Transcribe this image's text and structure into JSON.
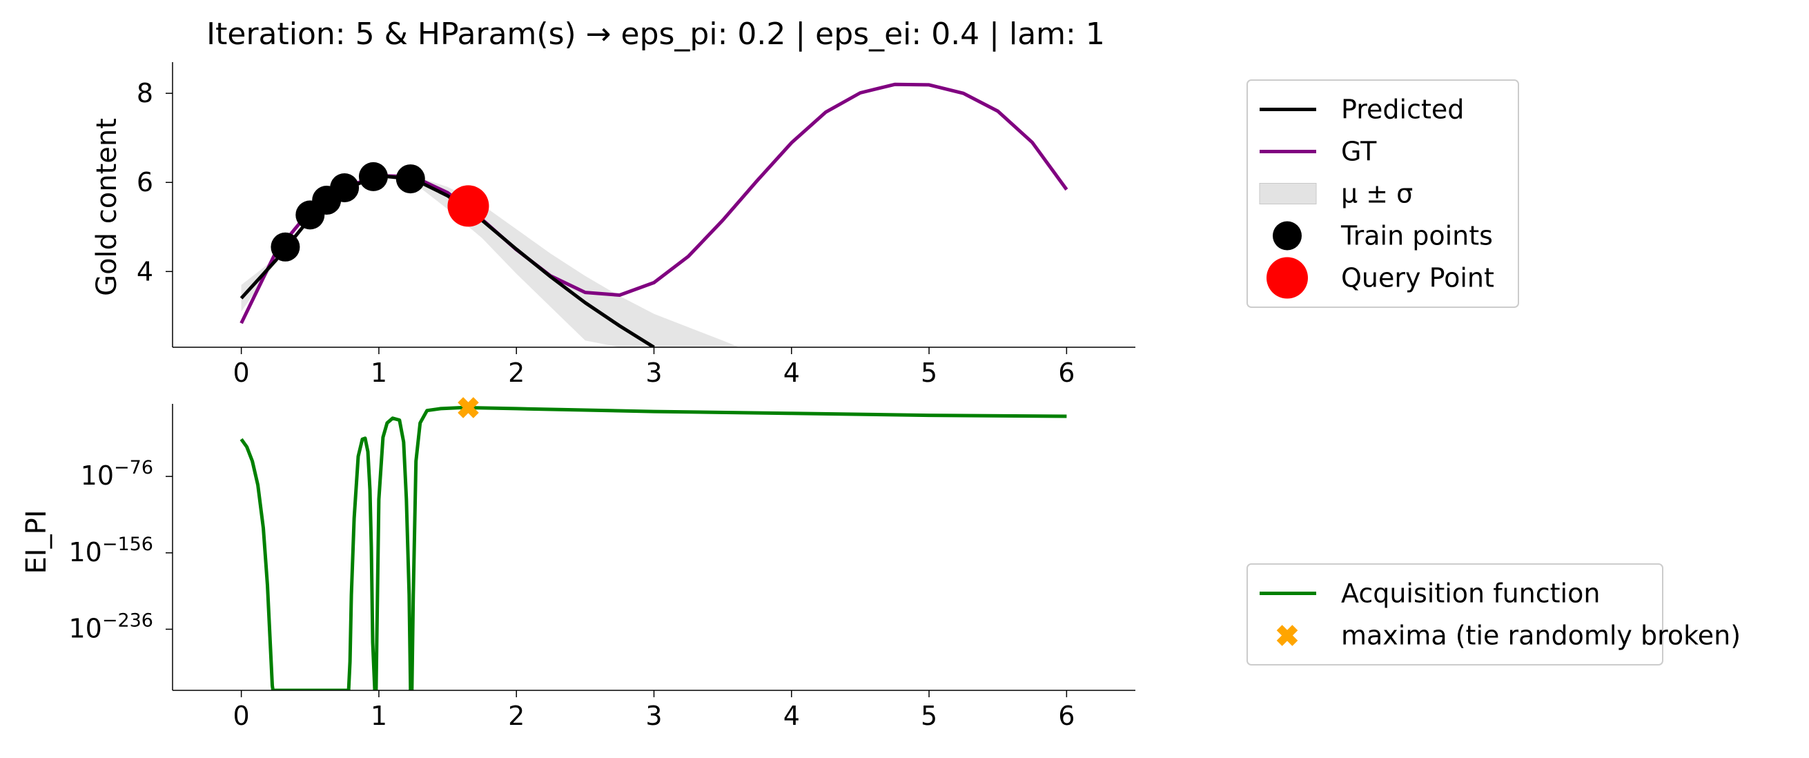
{
  "title": "Iteration: 5 & HParam(s) → eps_pi: 0.2 | eps_ei: 0.4 | lam: 1",
  "colors": {
    "predicted": "#000000",
    "gt": "#800080",
    "band": "#dcdcdc",
    "train": "#000000",
    "query": "#ff0000",
    "acquisition": "#008000",
    "maxima": "#ffa500"
  },
  "chart_data": [
    {
      "type": "line",
      "name": "top-panel",
      "ylabel": "Gold content",
      "xlim": [
        -0.5,
        6.5
      ],
      "ylim": [
        2.3,
        8.7
      ],
      "xticks": [
        "0",
        "1",
        "2",
        "3",
        "4",
        "5",
        "6"
      ],
      "yticks": [
        "4",
        "6",
        "8"
      ],
      "grid": false,
      "legend_position": "outside-right-top",
      "series": [
        {
          "name": "GT",
          "x": [
            0,
            0.25,
            0.5,
            0.75,
            1.0,
            1.25,
            1.5,
            1.75,
            2.0,
            2.25,
            2.5,
            2.75,
            3.0,
            3.25,
            3.5,
            3.75,
            4.0,
            4.25,
            4.5,
            4.75,
            5.0,
            5.25,
            5.5,
            5.75,
            6.0
          ],
          "y": [
            2.84,
            4.43,
            5.37,
            5.89,
            6.15,
            6.13,
            5.77,
            5.17,
            4.49,
            3.9,
            3.53,
            3.47,
            3.75,
            4.34,
            5.15,
            6.04,
            6.89,
            7.58,
            8.01,
            8.2,
            8.19,
            8.0,
            7.6,
            6.9,
            5.84
          ]
        },
        {
          "name": "Predicted",
          "x": [
            0,
            0.25,
            0.5,
            0.75,
            1.0,
            1.25,
            1.5,
            1.75,
            2.0,
            2.25,
            2.5,
            2.75,
            3.0
          ],
          "y": [
            3.4,
            4.25,
            5.2,
            5.85,
            6.15,
            6.08,
            5.7,
            5.15,
            4.5,
            3.88,
            3.3,
            2.78,
            2.3
          ]
        }
      ],
      "band": {
        "name": "μ ± σ",
        "x": [
          0,
          0.25,
          0.5,
          0.75,
          1.0,
          1.25,
          1.5,
          1.75,
          2.0,
          2.25,
          2.5,
          2.75,
          3.0,
          3.25,
          3.5,
          3.62
        ],
        "upper": [
          3.7,
          4.3,
          5.25,
          5.88,
          6.18,
          6.15,
          5.9,
          5.5,
          4.95,
          4.4,
          3.9,
          3.45,
          3.05,
          2.75,
          2.45,
          2.3
        ],
        "lower": [
          3.1,
          4.2,
          5.15,
          5.82,
          6.12,
          6.0,
          5.4,
          4.75,
          3.95,
          3.2,
          2.45,
          2.3,
          2.3,
          2.3,
          2.3,
          2.3
        ]
      },
      "train_points": {
        "name": "Train points",
        "x": [
          0.32,
          0.5,
          0.62,
          0.75,
          0.96,
          1.23
        ],
        "y": [
          4.55,
          5.27,
          5.6,
          5.88,
          6.13,
          6.08
        ]
      },
      "query_point": {
        "name": "Query Point",
        "x": [
          1.65
        ],
        "y": [
          5.47
        ]
      }
    },
    {
      "type": "line",
      "name": "bottom-panel",
      "ylabel": "EI_PI",
      "yscale": "log",
      "xlim": [
        -0.5,
        6.5
      ],
      "ylim_log10": [
        -300,
        0
      ],
      "xticks": [
        "0",
        "1",
        "2",
        "3",
        "4",
        "5",
        "6"
      ],
      "yticks_log10": [
        -76,
        -156,
        -236
      ],
      "grid": false,
      "legend_position": "outside-right-bottom",
      "series": [
        {
          "name": "Acquisition function",
          "x": [
            0,
            0.04,
            0.08,
            0.12,
            0.16,
            0.19,
            0.21,
            0.225,
            0.23,
            0.78,
            0.79,
            0.8,
            0.82,
            0.85,
            0.88,
            0.9,
            0.92,
            0.935,
            0.945,
            0.955,
            0.97,
            0.98,
            0.99,
            1.0,
            1.03,
            1.06,
            1.1,
            1.15,
            1.18,
            1.2,
            1.22,
            1.23,
            1.24,
            1.25,
            1.27,
            1.3,
            1.35,
            1.45,
            1.6,
            1.65,
            2.0,
            3.0,
            4.0,
            5.0,
            6.0
          ],
          "log10_y": [
            -37,
            -45,
            -60,
            -85,
            -130,
            -190,
            -250,
            -295,
            -300,
            -300,
            -270,
            -200,
            -120,
            -55,
            -37,
            -36,
            -50,
            -90,
            -150,
            -250,
            -300,
            -300,
            -200,
            -100,
            -35,
            -20,
            -15,
            -17,
            -40,
            -100,
            -200,
            -300,
            -300,
            -200,
            -60,
            -20,
            -7,
            -5,
            -4,
            -4,
            -5,
            -8,
            -10,
            -12,
            -13
          ]
        }
      ],
      "maxima": {
        "name": "maxima (tie randomly broken)",
        "x": [
          1.65
        ],
        "log10_y": [
          -4
        ]
      }
    }
  ],
  "legend_top": {
    "items": [
      {
        "label": "Predicted",
        "kind": "line",
        "color": "#000000"
      },
      {
        "label": "GT",
        "kind": "line",
        "color": "#800080"
      },
      {
        "label": "μ ± σ",
        "kind": "patch",
        "color": "#dcdcdc"
      },
      {
        "label": "Train points",
        "kind": "marker",
        "color": "#000000"
      },
      {
        "label": "Query Point",
        "kind": "marker-large",
        "color": "#ff0000"
      }
    ]
  },
  "legend_bottom": {
    "items": [
      {
        "label": "Acquisition function",
        "kind": "line",
        "color": "#008000"
      },
      {
        "label": "maxima (tie randomly broken)",
        "kind": "x-marker",
        "color": "#ffa500"
      }
    ]
  }
}
